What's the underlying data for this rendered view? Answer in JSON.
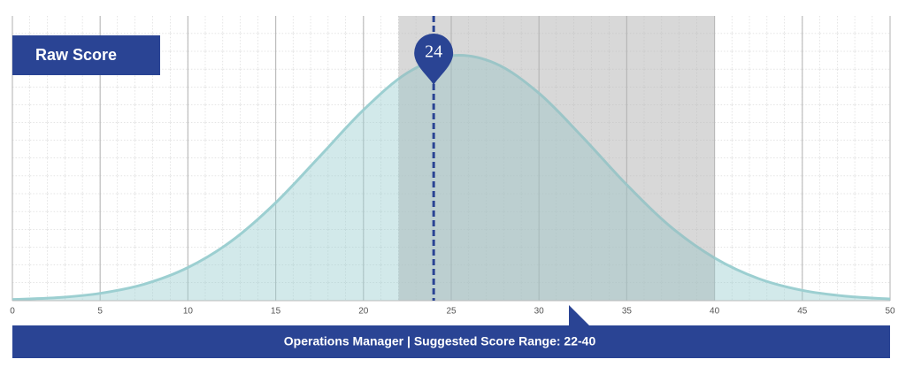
{
  "chart_data": {
    "type": "area",
    "title": "Raw Score",
    "x": [
      0,
      2.5,
      5,
      7.5,
      10,
      12.5,
      15,
      17.5,
      20,
      22.5,
      25,
      27.5,
      30,
      32.5,
      35,
      37.5,
      40,
      42.5,
      45,
      47.5,
      50
    ],
    "values": [
      0.5,
      1.2,
      3.0,
      6.7,
      13.5,
      24.4,
      39.9,
      58.7,
      77.7,
      92.8,
      99.8,
      96.7,
      84.5,
      66.5,
      47.2,
      30.1,
      17.4,
      9.0,
      4.2,
      1.8,
      0.7
    ],
    "color": "#9ccfd1",
    "xlim": [
      0,
      50
    ],
    "ylim": [
      0,
      116
    ],
    "xticks": [
      0,
      5,
      10,
      15,
      20,
      25,
      30,
      35,
      40,
      45,
      50
    ],
    "grid": true,
    "highlight_range": [
      22,
      40
    ],
    "marker": 24,
    "footer": "Operations Manager | Suggested Score Range: 22-40"
  }
}
